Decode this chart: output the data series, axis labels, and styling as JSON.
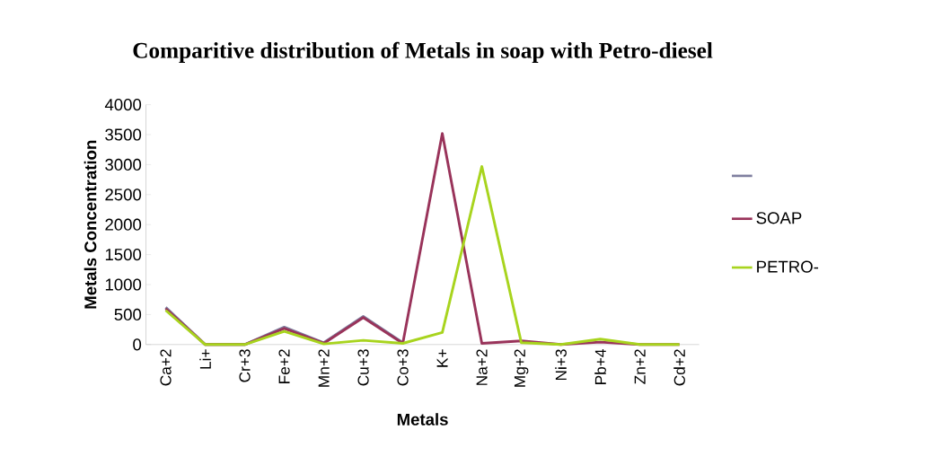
{
  "chart_data": {
    "type": "line",
    "title": "Comparitive distribution of Metals in soap with Petro-diesel",
    "xlabel": "Metals",
    "ylabel": "Metals Concentration",
    "categories": [
      "Ca+2",
      "Li+",
      "Cr+3",
      "Fe+2",
      "Mn+2",
      "Cu+3",
      "Co+3",
      "K+",
      "Na+2",
      "Mg+2",
      "Ni+3",
      "Pb+4",
      "Zn+2",
      "Cd+2"
    ],
    "series": [
      {
        "color": "#7f7f9f",
        "values": [
          620,
          0,
          0,
          290,
          30,
          470,
          30,
          null,
          null,
          null,
          null,
          null,
          null,
          null
        ]
      },
      {
        "name": "SOAP",
        "color": "#99335a",
        "values": [
          600,
          0,
          0,
          270,
          20,
          450,
          20,
          3520,
          20,
          60,
          0,
          40,
          0,
          0
        ]
      },
      {
        "name": "PETRO-",
        "color": "#a8d41e",
        "values": [
          570,
          0,
          0,
          220,
          10,
          70,
          20,
          200,
          2970,
          30,
          0,
          90,
          0,
          0
        ]
      }
    ],
    "ylim": [
      0,
      4000
    ],
    "yticks": [
      0,
      500,
      1000,
      1500,
      2000,
      2500,
      3000,
      3500,
      4000
    ],
    "grid": false,
    "legend": "right",
    "marker": "none",
    "line_style": "solid"
  }
}
